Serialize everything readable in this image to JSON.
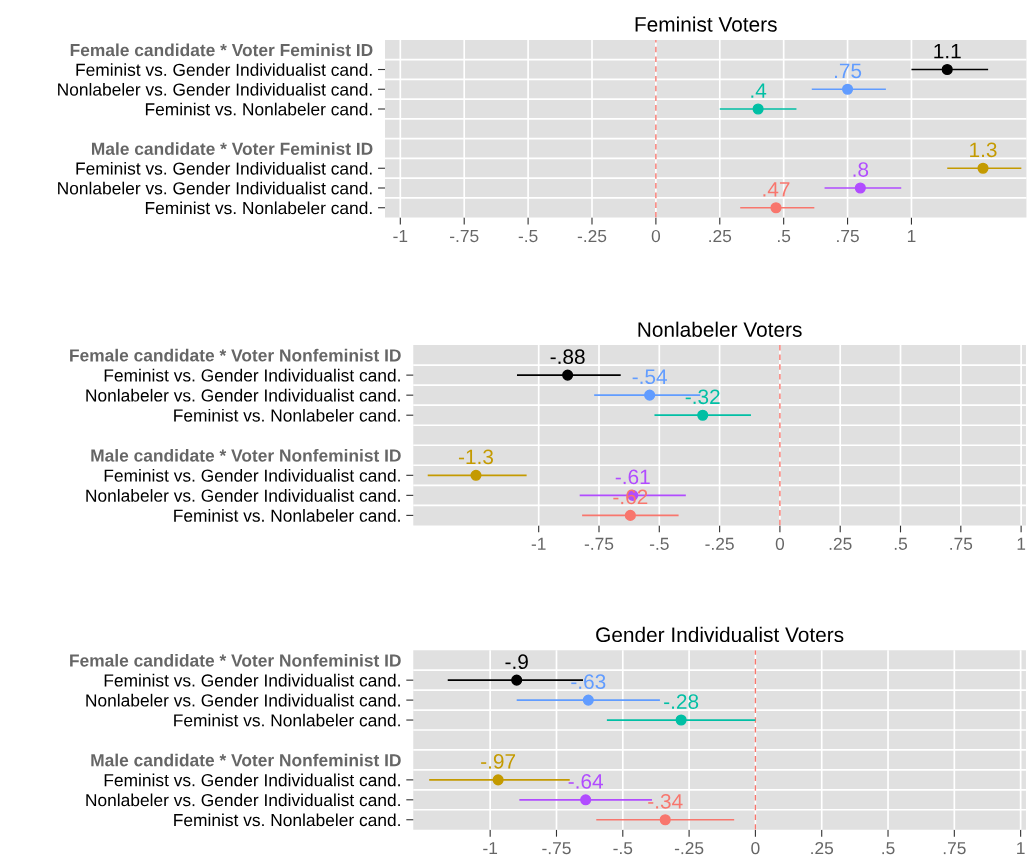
{
  "chart_data": [
    {
      "type": "scatter",
      "orientation": "horizontal",
      "title": "Feminist Voters",
      "categories": [
        "Female candidate * Voter Feminist ID",
        "Feminist vs. Gender Individualist cand.",
        "Nonlabeler vs. Gender Individualist cand.",
        "Feminist vs. Nonlabeler cand.",
        null,
        "Male candidate * Voter Feminist ID",
        "Feminist vs. Gender Individualist cand.",
        "Nonlabeler vs. Gender Individualist cand.",
        "Feminist vs. Nonlabeler cand."
      ],
      "values": [
        null,
        1.14,
        0.75,
        0.4,
        null,
        null,
        1.28,
        0.8,
        0.47
      ],
      "errors": [
        null,
        [
          1.0,
          1.3
        ],
        [
          0.61,
          0.9
        ],
        [
          0.25,
          0.55
        ],
        null,
        null,
        [
          1.14,
          1.43
        ],
        [
          0.66,
          0.96
        ],
        [
          0.33,
          0.62
        ]
      ],
      "value_labels": [
        null,
        "1.1",
        ".75",
        ".4",
        null,
        null,
        "1.3",
        ".8",
        ".47"
      ],
      "colors": [
        null,
        "#000000",
        "#619cff",
        "#00bfa4",
        null,
        null,
        "#c49a00",
        "#b14cff",
        "#f8766d"
      ],
      "xlim": [
        -1.06,
        1.45
      ],
      "xticks": [
        {
          "value": -1,
          "label": "-1"
        },
        {
          "value": -0.75,
          "label": "-.75"
        },
        {
          "value": -0.5,
          "label": "-.5"
        },
        {
          "value": -0.25,
          "label": "-.25"
        },
        0,
        {
          "value": 0.25,
          "label": ".25"
        },
        {
          "value": 0.5,
          "label": ".5"
        },
        {
          "value": 0.75,
          "label": ".75"
        },
        1
      ],
      "ref_lines": [
        {
          "axis": "x",
          "value": 0,
          "color": "#f8766d",
          "line_style": "dashed"
        }
      ],
      "grid": true,
      "marker": "circle"
    },
    {
      "type": "scatter",
      "orientation": "horizontal",
      "title": "Nonlabeler Voters",
      "categories": [
        "Female candidate * Voter Nonfeminist ID",
        "Feminist vs. Gender Individualist cand.",
        "Nonlabeler vs. Gender Individualist cand.",
        "Feminist vs. Nonlabeler cand.",
        null,
        "Male candidate * Voter Nonfeminist ID",
        "Feminist vs. Gender Individualist cand.",
        "Nonlabeler vs. Gender Individualist cand.",
        "Feminist vs. Nonlabeler cand."
      ],
      "values": [
        null,
        -0.88,
        -0.54,
        -0.32,
        null,
        null,
        -1.26,
        -0.61,
        -0.62
      ],
      "errors": [
        null,
        [
          -1.09,
          -0.66
        ],
        [
          -0.77,
          -0.33
        ],
        [
          -0.52,
          -0.12
        ],
        null,
        null,
        [
          -1.46,
          -1.05
        ],
        [
          -0.83,
          -0.39
        ],
        [
          -0.82,
          -0.42
        ]
      ],
      "value_labels": [
        null,
        "-.88",
        "-.54",
        "-.32",
        null,
        null,
        "-1.3",
        "-.61",
        "-.62"
      ],
      "colors": [
        null,
        "#000000",
        "#619cff",
        "#00bfa4",
        null,
        null,
        "#c49a00",
        "#b14cff",
        "#f8766d"
      ],
      "xlim": [
        -1.52,
        1.02
      ],
      "xticks": [
        {
          "value": -1,
          "label": "-1"
        },
        {
          "value": -0.75,
          "label": "-.75"
        },
        {
          "value": -0.5,
          "label": "-.5"
        },
        {
          "value": -0.25,
          "label": "-.25"
        },
        0,
        {
          "value": 0.25,
          "label": ".25"
        },
        {
          "value": 0.5,
          "label": ".5"
        },
        {
          "value": 0.75,
          "label": ".75"
        },
        1
      ],
      "ref_lines": [
        {
          "axis": "x",
          "value": 0,
          "color": "#f8766d",
          "line_style": "dashed"
        }
      ],
      "grid": true,
      "marker": "circle"
    },
    {
      "type": "scatter",
      "orientation": "horizontal",
      "title": "Gender Individualist Voters",
      "categories": [
        "Female candidate * Voter Nonfeminist ID",
        "Feminist vs. Gender Individualist cand.",
        "Nonlabeler vs. Gender Individualist cand.",
        "Feminist vs. Nonlabeler cand.",
        null,
        "Male candidate * Voter Nonfeminist ID",
        "Feminist vs. Gender Individualist cand.",
        "Nonlabeler vs. Gender Individualist cand.",
        "Feminist vs. Nonlabeler cand."
      ],
      "values": [
        null,
        -0.9,
        -0.63,
        -0.28,
        null,
        null,
        -0.97,
        -0.64,
        -0.34
      ],
      "errors": [
        null,
        [
          -1.16,
          -0.65
        ],
        [
          -0.9,
          -0.36
        ],
        [
          -0.56,
          0.0
        ],
        null,
        null,
        [
          -1.23,
          -0.7
        ],
        [
          -0.89,
          -0.39
        ],
        [
          -0.6,
          -0.08
        ]
      ],
      "value_labels": [
        null,
        "-.9",
        "-.63",
        "-.28",
        null,
        null,
        "-.97",
        "-.64",
        "-.34"
      ],
      "colors": [
        null,
        "#000000",
        "#619cff",
        "#00bfa4",
        null,
        null,
        "#c49a00",
        "#b14cff",
        "#f8766d"
      ],
      "xlim": [
        -1.29,
        1.02
      ],
      "xticks": [
        {
          "value": -1,
          "label": "-1"
        },
        {
          "value": -0.75,
          "label": "-.75"
        },
        {
          "value": -0.5,
          "label": "-.5"
        },
        {
          "value": -0.25,
          "label": "-.25"
        },
        0,
        {
          "value": 0.25,
          "label": ".25"
        },
        {
          "value": 0.5,
          "label": ".5"
        },
        {
          "value": 0.75,
          "label": ".75"
        },
        1
      ],
      "ref_lines": [
        {
          "axis": "x",
          "value": 0,
          "color": "#f8766d",
          "line_style": "dashed"
        }
      ],
      "grid": true,
      "marker": "circle"
    }
  ]
}
